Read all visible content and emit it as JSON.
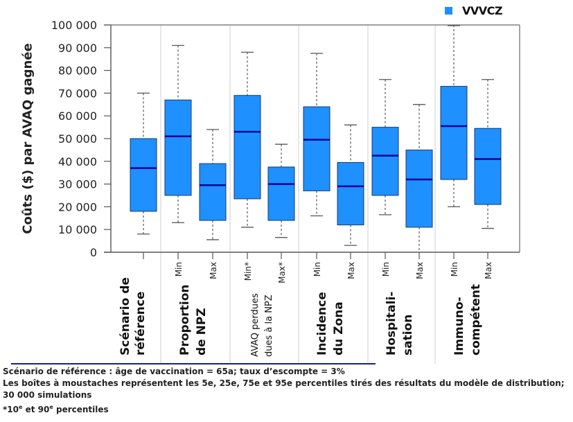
{
  "legend": {
    "label": "VVVCZ",
    "color": "#1e90ff"
  },
  "footnotes": {
    "line1": "Scénario de référence : âge de vaccination = 65a; taux d’escompte = 3%",
    "line2": "Les boîtes à moustaches représentent les 5e, 25e, 75e et 95e percentiles tirés des résultats du modèle de distribution;",
    "line3": "30 000 simulations",
    "line4_pre": "*10",
    "line4_sup1": "e",
    "line4_mid": " et 90",
    "line4_sup2": "e",
    "line4_post": " percentiles"
  },
  "chart_data": {
    "type": "boxplot",
    "title": "",
    "ylabel": "Coûts ($) par AVAQ gagnée",
    "ylim": [
      0,
      100000
    ],
    "yticks": [
      0,
      10000,
      20000,
      30000,
      40000,
      50000,
      60000,
      70000,
      80000,
      90000,
      100000
    ],
    "ytick_labels": [
      "0",
      "10 000",
      "20 000",
      "30 000",
      "40 000",
      "50 000",
      "60 000",
      "70 000",
      "80 000",
      "90 000",
      "100 000"
    ],
    "box_color": "#1e90ff",
    "median_color": "#00008b",
    "groups": [
      {
        "label_lines": [
          "Scénario de",
          "référence"
        ],
        "boxes": [
          0
        ]
      },
      {
        "label_lines": [
          "Proportion",
          "de NPZ"
        ],
        "boxes": [
          1,
          2
        ]
      },
      {
        "label_lines": [
          "AVAQ perdues",
          "dues à la NPZ"
        ],
        "boxes": [
          3,
          4
        ]
      },
      {
        "label_lines": [
          "Incidence",
          "du Zona"
        ],
        "boxes": [
          5,
          6
        ]
      },
      {
        "label_lines": [
          "Hospitali-",
          "sation"
        ],
        "boxes": [
          7,
          8
        ]
      },
      {
        "label_lines": [
          "Immuno-",
          "compétent"
        ],
        "boxes": [
          9,
          10
        ]
      }
    ],
    "series": [
      {
        "name": "Scénario de référence",
        "tick": "",
        "whisker_low": 8000,
        "q1": 18000,
        "median": 37000,
        "q3": 50000,
        "whisker_high": 70000
      },
      {
        "name": "Proportion de NPZ - Min",
        "tick": "Min",
        "whisker_low": 13000,
        "q1": 25000,
        "median": 51000,
        "q3": 67000,
        "whisker_high": 91000
      },
      {
        "name": "Proportion de NPZ - Max",
        "tick": "Max",
        "whisker_low": 5500,
        "q1": 14000,
        "median": 29500,
        "q3": 39000,
        "whisker_high": 54000
      },
      {
        "name": "AVAQ perdues dues à la NPZ - Min*",
        "tick": "Min*",
        "whisker_low": 11000,
        "q1": 23500,
        "median": 53000,
        "q3": 69000,
        "whisker_high": 88000
      },
      {
        "name": "AVAQ perdues dues à la NPZ - Max*",
        "tick": "Max*",
        "whisker_low": 6500,
        "q1": 14000,
        "median": 30000,
        "q3": 37500,
        "whisker_high": 47500
      },
      {
        "name": "Incidence du Zona - Min",
        "tick": "Min",
        "whisker_low": 16000,
        "q1": 27000,
        "median": 49500,
        "q3": 64000,
        "whisker_high": 87500
      },
      {
        "name": "Incidence du Zona - Max",
        "tick": "Max",
        "whisker_low": 3000,
        "q1": 12000,
        "median": 29000,
        "q3": 39500,
        "whisker_high": 56000
      },
      {
        "name": "Hospitalisation - Min",
        "tick": "Min",
        "whisker_low": 16500,
        "q1": 25000,
        "median": 42500,
        "q3": 55000,
        "whisker_high": 76000
      },
      {
        "name": "Hospitalisation - Max",
        "tick": "Max",
        "whisker_low": 0,
        "q1": 11000,
        "median": 32000,
        "q3": 45000,
        "whisker_high": 65000
      },
      {
        "name": "Immunocompétent - Min",
        "tick": "Min",
        "whisker_low": 20000,
        "q1": 32000,
        "median": 55500,
        "q3": 73000,
        "whisker_high": 100000
      },
      {
        "name": "Immunocompétent - Max",
        "tick": "Max",
        "whisker_low": 10500,
        "q1": 21000,
        "median": 41000,
        "q3": 54500,
        "whisker_high": 76000
      }
    ]
  }
}
